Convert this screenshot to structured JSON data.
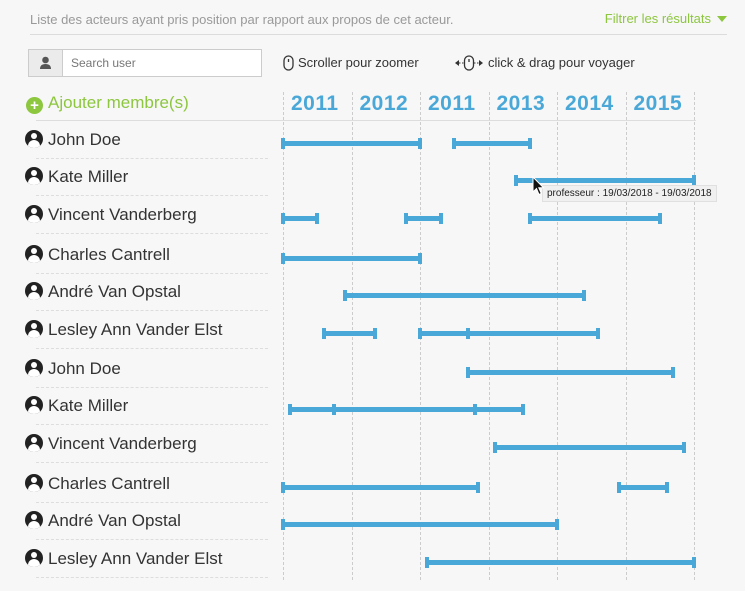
{
  "header": {
    "description": "Liste des acteurs ayant pris position par rapport aux propos de cet acteur.",
    "filter_label": "Filtrer les résultats"
  },
  "search": {
    "placeholder": "Search user",
    "icon": "user-icon"
  },
  "hints": {
    "zoom": "Scroller pour zoomer",
    "drag": "click & drag pour voyager"
  },
  "add_member_label": "Ajouter membre(s)",
  "timeline": {
    "years": [
      "2011",
      "2012",
      "2011",
      "2013",
      "2014",
      "2015"
    ],
    "colors": {
      "bar": "#4aa8d8",
      "accent": "#8dc63f"
    }
  },
  "rows": [
    {
      "name": "John Doe",
      "segments": [
        [
          0.0,
          2.0
        ],
        [
          2.5,
          3.6
        ]
      ]
    },
    {
      "name": "Kate Miller",
      "segments": [
        [
          3.4,
          6.0
        ]
      ]
    },
    {
      "name": "Vincent Vanderberg",
      "segments": [
        [
          0.0,
          0.5
        ],
        [
          1.8,
          2.3
        ],
        [
          3.6,
          5.5
        ]
      ]
    },
    {
      "name": "Charles Cantrell",
      "segments": [
        [
          0.0,
          2.0
        ]
      ]
    },
    {
      "name": "André Van Opstal",
      "segments": [
        [
          0.9,
          4.4
        ]
      ]
    },
    {
      "name": "Lesley Ann Vander Elst",
      "segments": [
        [
          0.6,
          1.35
        ],
        [
          2.0,
          4.6
        ]
      ],
      "handles": [
        2.7
      ]
    },
    {
      "name": "John Doe",
      "segments": [
        [
          2.7,
          5.7
        ]
      ]
    },
    {
      "name": "Kate Miller",
      "segments": [
        [
          0.1,
          3.5
        ]
      ],
      "handles": [
        0.75,
        2.8
      ]
    },
    {
      "name": "Vincent Vanderberg",
      "segments": [
        [
          3.1,
          5.85
        ]
      ]
    },
    {
      "name": "Charles Cantrell",
      "segments": [
        [
          0.0,
          2.85
        ],
        [
          4.9,
          5.6
        ]
      ]
    },
    {
      "name": "André Van Opstal",
      "segments": [
        [
          0.0,
          4.0
        ]
      ]
    },
    {
      "name": "Lesley Ann Vander Elst",
      "segments": [
        [
          2.1,
          6.0
        ]
      ]
    }
  ],
  "tooltip": "professeur : 19/03/2018 - 19/03/2018"
}
